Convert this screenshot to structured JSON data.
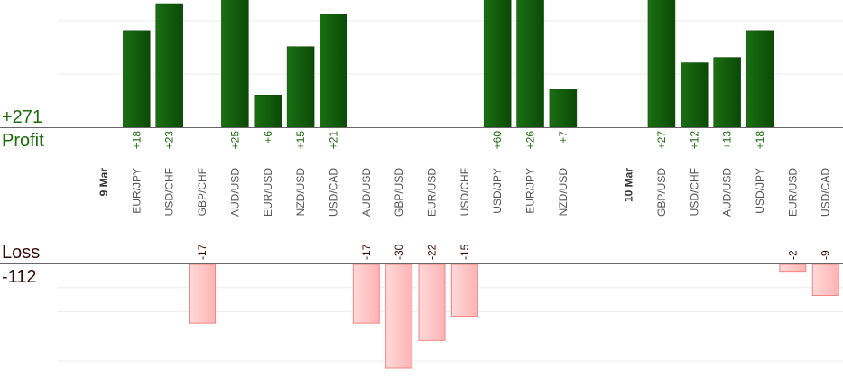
{
  "summary": {
    "profit_total": "+271",
    "profit_label": "Profit",
    "loss_label": "Loss",
    "loss_total": "-112"
  },
  "colors": {
    "profit_bar": "#1a6f12",
    "profit_bar_dark": "#0b4a06",
    "loss_bar": "#ffb3b3",
    "loss_bar_border": "#f08585",
    "profit_text": "#1e6b0e",
    "loss_text": "#3b0b0b",
    "axis": "#666666",
    "grid": "#eeeeee",
    "pair_label": "#555555",
    "date_label": "#333333"
  },
  "chart_data": {
    "type": "bar",
    "scale": {
      "profit_max": 30,
      "loss_max": 30
    },
    "gridlines": {
      "profit": [
        10,
        20
      ],
      "loss": [
        -15,
        -30
      ]
    },
    "items": [
      {
        "kind": "date",
        "label": "9 Mar"
      },
      {
        "kind": "trade",
        "pair": "EUR/JPY",
        "value": 18,
        "label": "+18"
      },
      {
        "kind": "trade",
        "pair": "USD/CHF",
        "value": 23,
        "label": "+23"
      },
      {
        "kind": "trade",
        "pair": "GBP/CHF",
        "value": -17,
        "label": "-17"
      },
      {
        "kind": "trade",
        "pair": "AUD/USD",
        "value": 25,
        "label": "+25"
      },
      {
        "kind": "trade",
        "pair": "EUR/USD",
        "value": 6,
        "label": "+6"
      },
      {
        "kind": "trade",
        "pair": "NZD/USD",
        "value": 15,
        "label": "+15"
      },
      {
        "kind": "trade",
        "pair": "USD/CAD",
        "value": 21,
        "label": "+21"
      },
      {
        "kind": "trade",
        "pair": "AUD/USD",
        "value": -17,
        "label": "-17"
      },
      {
        "kind": "trade",
        "pair": "GBP/USD",
        "value": -30,
        "label": "-30"
      },
      {
        "kind": "trade",
        "pair": "EUR/USD",
        "value": -22,
        "label": "-22"
      },
      {
        "kind": "trade",
        "pair": "USD/CHF",
        "value": -15,
        "label": "-15"
      },
      {
        "kind": "trade",
        "pair": "USD/JPY",
        "value": 60,
        "label": "+60"
      },
      {
        "kind": "trade",
        "pair": "EUR/JPY",
        "value": 26,
        "label": "+26"
      },
      {
        "kind": "trade",
        "pair": "NZD/USD",
        "value": 7,
        "label": "+7"
      },
      {
        "kind": "spacer"
      },
      {
        "kind": "date",
        "label": "10 Mar"
      },
      {
        "kind": "trade",
        "pair": "GBP/USD",
        "value": 27,
        "label": "+27"
      },
      {
        "kind": "trade",
        "pair": "USD/CHF",
        "value": 12,
        "label": "+12"
      },
      {
        "kind": "trade",
        "pair": "AUD/USD",
        "value": 13,
        "label": "+13"
      },
      {
        "kind": "trade",
        "pair": "USD/JPY",
        "value": 18,
        "label": "+18"
      },
      {
        "kind": "trade",
        "pair": "EUR/USD",
        "value": -2,
        "label": "-2"
      },
      {
        "kind": "trade",
        "pair": "USD/CAD",
        "value": -9,
        "label": "-9"
      }
    ]
  }
}
